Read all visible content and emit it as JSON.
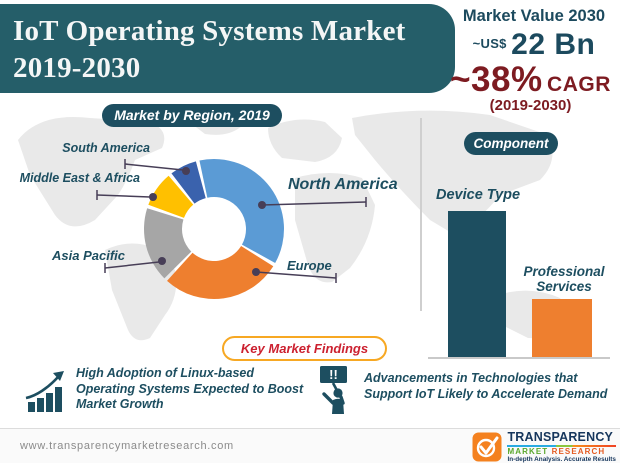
{
  "banner": {
    "title_line1": "IoT Operating Systems Market",
    "title_line2": "2019-2030"
  },
  "market_value": {
    "heading": "Market Value 2030",
    "prefix": "~US$",
    "value": "22 Bn"
  },
  "cagr": {
    "value": "~38%",
    "label": "CAGR",
    "period": "(2019-2030)"
  },
  "region_section": {
    "pill_label": "Market by Region, 2019"
  },
  "component_section": {
    "pill_label": "Component"
  },
  "key_findings": {
    "pill_label": "Key Market Findings",
    "items": [
      {
        "icon": "growth-chart-icon",
        "text": "High Adoption of Linux-based Operating Systems Expected to Boost Market Growth"
      },
      {
        "icon": "announcement-sign-icon",
        "icon_text": "!!",
        "text": "Advancements in Technologies that Support IoT Likely to Accelerate Demand"
      }
    ]
  },
  "footer": {
    "website": "www.transparencymarketresearch.com",
    "logo": {
      "name": "TRANSPARENCY",
      "sub_market": "MARKET",
      "sub_research": "RESEARCH",
      "tagline": "In-depth Analysis. Accurate Results"
    }
  },
  "colors": {
    "banner_teal": "#255e69",
    "accent_teal": "#1d4e60",
    "value_navy": "#1c4a5e",
    "cagr_maroon": "#7d1b21",
    "findings_red": "#cc2130",
    "findings_border_orange": "#f7a823",
    "chart_orange": "#ee7f2f",
    "logo_orange": "#f4811f"
  },
  "chart_data": [
    {
      "type": "pie",
      "donut": true,
      "title": "Market by Region, 2019",
      "labels": [
        "North America",
        "Europe",
        "Asia Pacific",
        "Middle East & Africa",
        "South America"
      ],
      "values": [
        38,
        29,
        18,
        8.5,
        6.5
      ],
      "colors": [
        "#5b9bd5",
        "#ee7f2f",
        "#a6a6a6",
        "#ffc000",
        "#3a62ad"
      ],
      "note": "share estimated from slice angles; no numeric labels shown",
      "start_angle_deg": 348,
      "legend_position": "callout-labels"
    },
    {
      "type": "bar",
      "title": "Component",
      "categories": [
        "Device Type",
        "Professional Services"
      ],
      "values": [
        100,
        40
      ],
      "colors": [
        "#1d4e60",
        "#ee7f2f"
      ],
      "note": "relative bar heights; no value axis shown",
      "ylim": [
        0,
        110
      ],
      "grid": false
    }
  ]
}
